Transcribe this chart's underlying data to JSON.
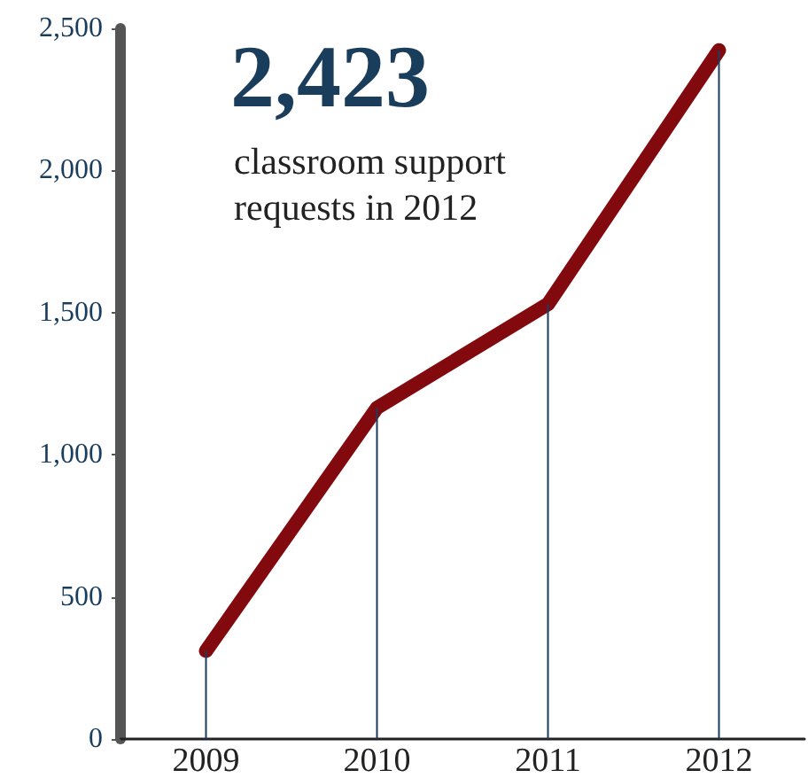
{
  "chart_data": {
    "type": "line",
    "categories": [
      "2009",
      "2010",
      "2011",
      "2012"
    ],
    "series": [
      {
        "type": "bar",
        "color": "#1a3d5c",
        "values": [
          310,
          1165,
          1530,
          2423
        ]
      },
      {
        "color": "#820a0f",
        "values": [
          310,
          1165,
          1530,
          2423
        ]
      }
    ],
    "marker": "none",
    "ylim": [
      0,
      2500
    ],
    "yticks": [
      0,
      500,
      {
        "value": 1000,
        "label": "1,000"
      },
      {
        "value": 1500,
        "label": "1,500"
      },
      {
        "value": 2000,
        "label": "2,000"
      },
      {
        "value": 2500,
        "label": "2,500"
      }
    ],
    "annotations": [
      "2,423",
      "classroom support requests in 2012"
    ]
  }
}
